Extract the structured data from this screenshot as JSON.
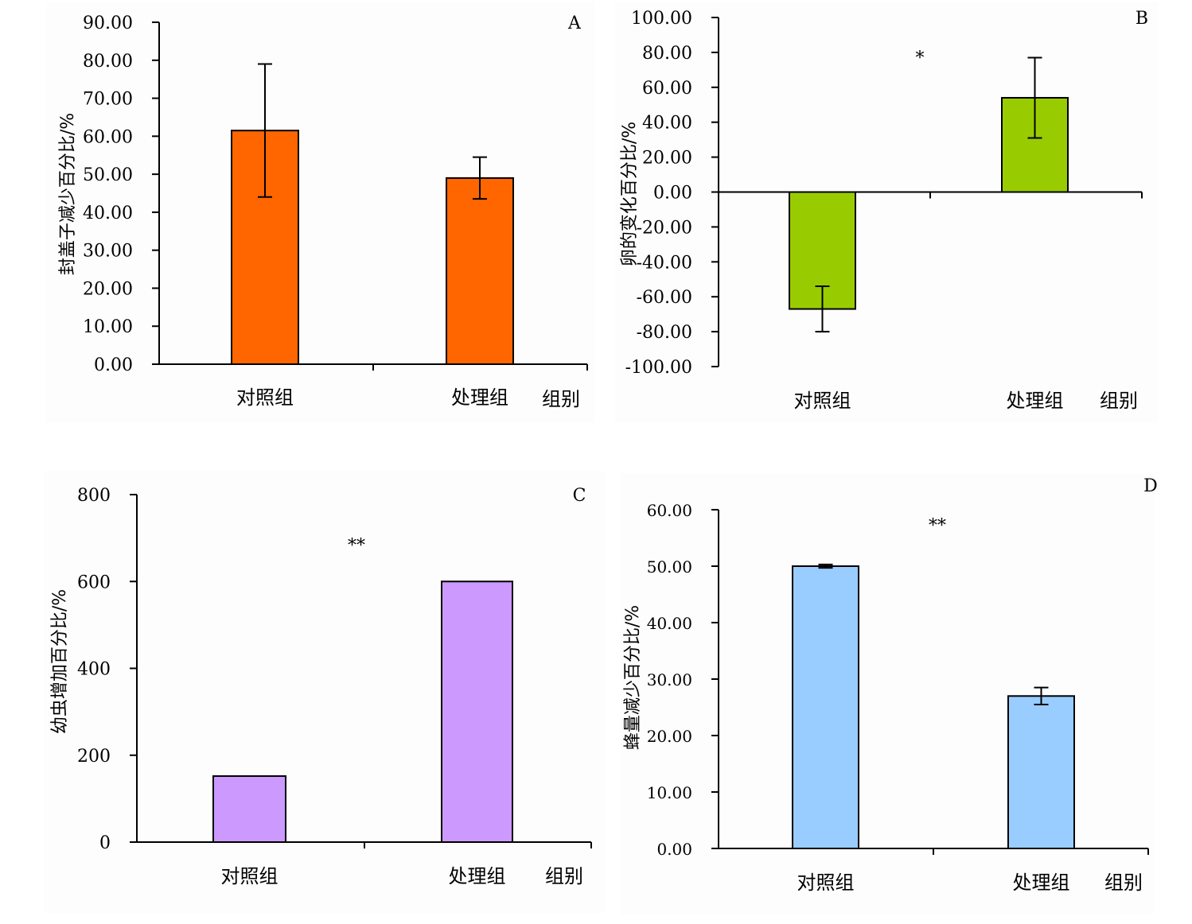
{
  "chart_data": [
    {
      "type": "bar",
      "panel_label": "A",
      "categories": [
        "对照组",
        "处理组"
      ],
      "x_axis_name": "组别",
      "ylabel": "封盖子减少百分比/%",
      "values": [
        61.5,
        49.0
      ],
      "error": [
        17.5,
        5.5
      ],
      "ylim": [
        0,
        90
      ],
      "ytick_step": 10,
      "ytick_labels": [
        "0.00",
        "10.00",
        "20.00",
        "30.00",
        "40.00",
        "50.00",
        "60.00",
        "70.00",
        "80.00",
        "90.00"
      ],
      "significance": "",
      "bar_color": "#ff6600",
      "grid": false
    },
    {
      "type": "bar",
      "panel_label": "B",
      "categories": [
        "对照组",
        "处理组"
      ],
      "x_axis_name": "组别",
      "ylabel": "卵的变化百分比/%",
      "values": [
        -67.0,
        54.0
      ],
      "error": [
        13.0,
        23.0
      ],
      "ylim": [
        -100,
        100
      ],
      "ytick_step": 20,
      "ytick_labels": [
        "-100.00",
        "-80.00",
        "-60.00",
        "-40.00",
        "-20.00",
        "0.00",
        "20.00",
        "40.00",
        "60.00",
        "80.00",
        "100.00"
      ],
      "significance": "*",
      "bar_color": "#99cc00",
      "grid": false
    },
    {
      "type": "bar",
      "panel_label": "C",
      "categories": [
        "对照组",
        "处理组"
      ],
      "x_axis_name": "组别",
      "ylabel": "幼虫增加百分比/%",
      "values": [
        152,
        600
      ],
      "error": [
        0,
        0
      ],
      "ylim": [
        0,
        800
      ],
      "ytick_step": 200,
      "ytick_labels": [
        "0",
        "200",
        "400",
        "600",
        "800"
      ],
      "significance": "**",
      "bar_color": "#cc99ff",
      "grid": false
    },
    {
      "type": "bar",
      "panel_label": "D",
      "categories": [
        "对照组",
        "处理组"
      ],
      "x_axis_name": "组别",
      "ylabel": "蜂量减少百分比/%",
      "values": [
        50.0,
        27.0
      ],
      "error": [
        0.3,
        1.5
      ],
      "ylim": [
        0,
        60
      ],
      "ytick_step": 10,
      "ytick_labels": [
        "0.00",
        "10.00",
        "20.00",
        "30.00",
        "40.00",
        "50.00",
        "60.00"
      ],
      "significance": "**",
      "bar_color": "#99ccff",
      "grid": false
    }
  ]
}
